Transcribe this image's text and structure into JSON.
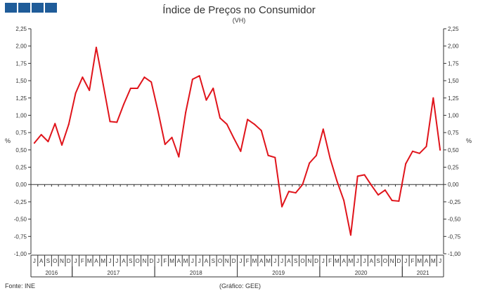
{
  "header": {
    "logo_blocks": 4,
    "logo_color": "#1f5c99"
  },
  "chart_data": {
    "type": "line",
    "title": "Índice de Preços no Consumidor",
    "subtitle": "(VH)",
    "ylabel_left": "%",
    "ylabel_right": "%",
    "ylim": [
      -1.0,
      2.25
    ],
    "yticks": [
      "-1,00",
      "-0,75",
      "-0,50",
      "-0,25",
      "0,00",
      "0,25",
      "0,50",
      "0,75",
      "1,00",
      "1,25",
      "1,50",
      "1,75",
      "2,00",
      "2,25"
    ],
    "ytick_values": [
      -1.0,
      -0.75,
      -0.5,
      -0.25,
      0,
      0.25,
      0.5,
      0.75,
      1.0,
      1.25,
      1.5,
      1.75,
      2.0,
      2.25
    ],
    "line_color": "#e0141b",
    "month_labels": [
      "J",
      "A",
      "S",
      "O",
      "N",
      "D",
      "J",
      "F",
      "M",
      "A",
      "M",
      "J",
      "J",
      "A",
      "S",
      "O",
      "N",
      "D",
      "J",
      "F",
      "M",
      "A",
      "M",
      "J",
      "J",
      "A",
      "S",
      "O",
      "N",
      "D",
      "J",
      "F",
      "M",
      "A",
      "M",
      "J",
      "J",
      "A",
      "S",
      "O",
      "N",
      "D",
      "J",
      "F",
      "M",
      "A",
      "M",
      "J",
      "J",
      "A",
      "S",
      "O",
      "N",
      "D",
      "J",
      "F",
      "M",
      "A",
      "M",
      "J"
    ],
    "years": [
      {
        "label": "2016",
        "start": 0,
        "count": 6
      },
      {
        "label": "2017",
        "start": 6,
        "count": 12
      },
      {
        "label": "2018",
        "start": 18,
        "count": 12
      },
      {
        "label": "2019",
        "start": 30,
        "count": 12
      },
      {
        "label": "2020",
        "start": 42,
        "count": 12
      },
      {
        "label": "2021",
        "start": 54,
        "count": 6
      }
    ],
    "series": [
      {
        "values": [
          0.6,
          0.72,
          0.62,
          0.88,
          0.57,
          0.87,
          1.32,
          1.55,
          1.36,
          1.98,
          1.45,
          0.91,
          0.9,
          1.16,
          1.39,
          1.39,
          1.55,
          1.48,
          1.05,
          0.58,
          0.68,
          0.4,
          1.04,
          1.52,
          1.57,
          1.22,
          1.39,
          0.96,
          0.87,
          0.67,
          0.48,
          0.94,
          0.87,
          0.78,
          0.42,
          0.39,
          -0.32,
          -0.1,
          -0.12,
          0.0,
          0.31,
          0.42,
          0.8,
          0.38,
          0.05,
          -0.23,
          -0.73,
          0.12,
          0.14,
          -0.01,
          -0.15,
          -0.08,
          -0.23,
          -0.24,
          0.3,
          0.48,
          0.45,
          0.55,
          1.25,
          0.5
        ]
      }
    ]
  },
  "footer": {
    "source": "Fonte: INE",
    "credit": "(Gráfico: GEE)"
  }
}
